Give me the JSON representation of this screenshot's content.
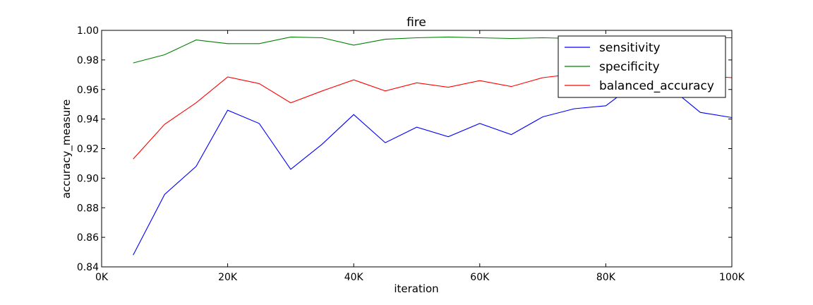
{
  "chart_data": {
    "type": "line",
    "title": "fire",
    "xlabel": "iteration",
    "ylabel": "accuracy_measure",
    "xlim": [
      0,
      100000
    ],
    "ylim": [
      0.84,
      1.0
    ],
    "x_ticks": [
      0,
      20000,
      40000,
      60000,
      80000,
      100000
    ],
    "x_tick_labels": [
      "0K",
      "20K",
      "40K",
      "60K",
      "80K",
      "100K"
    ],
    "y_ticks": [
      0.84,
      0.86,
      0.88,
      0.9,
      0.92,
      0.94,
      0.96,
      0.98,
      1.0
    ],
    "y_tick_labels": [
      "0.84",
      "0.86",
      "0.88",
      "0.90",
      "0.92",
      "0.94",
      "0.96",
      "0.98",
      "1.00"
    ],
    "grid": false,
    "legend_position": "top-right",
    "x": [
      5000,
      10000,
      15000,
      20000,
      25000,
      30000,
      35000,
      40000,
      45000,
      50000,
      55000,
      60000,
      65000,
      70000,
      75000,
      80000,
      85000,
      90000,
      95000,
      100000
    ],
    "series": [
      {
        "name": "sensitivity",
        "color": "#0000ff",
        "values": [
          0.848,
          0.889,
          0.908,
          0.946,
          0.937,
          0.906,
          0.923,
          0.943,
          0.924,
          0.9345,
          0.928,
          0.937,
          0.9295,
          0.9415,
          0.947,
          0.949,
          0.965,
          0.962,
          0.9445,
          0.941
        ]
      },
      {
        "name": "specificity",
        "color": "#008000",
        "values": [
          0.978,
          0.9835,
          0.9935,
          0.991,
          0.991,
          0.9955,
          0.995,
          0.99,
          0.994,
          0.995,
          0.9955,
          0.995,
          0.9945,
          0.995,
          0.9945,
          0.995,
          0.995,
          0.995,
          0.995,
          0.995
        ]
      },
      {
        "name": "balanced_accuracy",
        "color": "#ff0000",
        "values": [
          0.913,
          0.9365,
          0.951,
          0.9685,
          0.964,
          0.951,
          0.959,
          0.9665,
          0.959,
          0.9645,
          0.9615,
          0.966,
          0.962,
          0.968,
          0.9705,
          0.972,
          0.98,
          0.9785,
          0.9695,
          0.968
        ]
      }
    ]
  }
}
